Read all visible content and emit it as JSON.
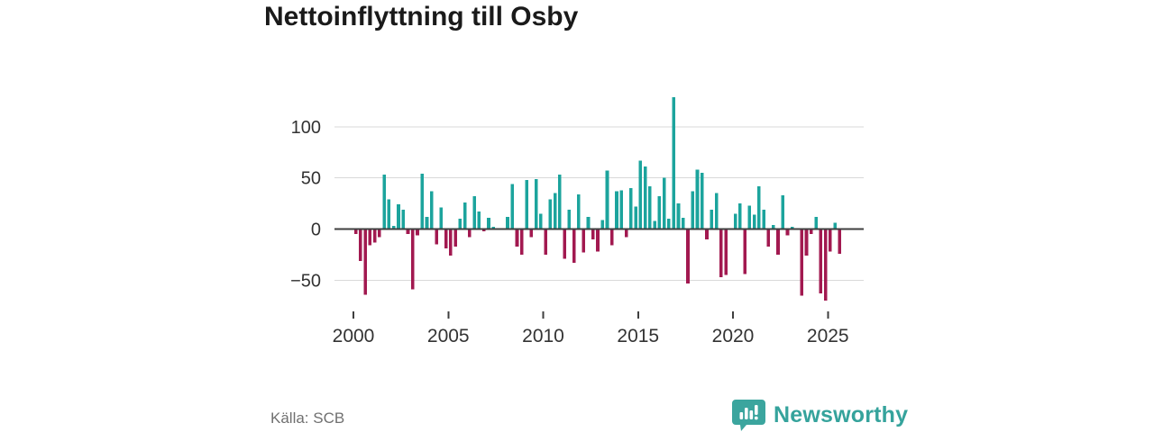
{
  "title": "Nettoinflyttning till Osby",
  "footer": {
    "source": "Källa: SCB",
    "brand": "Newsworthy"
  },
  "colors": {
    "positive_bar": "#1ca49d",
    "negative_bar": "#a21950",
    "brand_teal": "#35a39c",
    "grid_line": "#d9d9d9",
    "zero_line": "#3f3f3f",
    "tick_text": "#333333",
    "muted_text": "#707070"
  },
  "chart_data": {
    "type": "bar",
    "title": "Nettoinflyttning till Osby",
    "x_unit": "quarter",
    "x_range": "2000Q1–2025Q3",
    "grid": true,
    "legend": false,
    "ylim": [
      -80,
      140
    ],
    "yticks": [
      -50,
      0,
      50,
      100
    ],
    "ytick_labels": [
      "−50",
      "0",
      "50",
      "100"
    ],
    "xticks": [
      2000,
      2005,
      2010,
      2015,
      2020,
      2025
    ],
    "xtick_labels": [
      "2000",
      "2005",
      "2010",
      "2015",
      "2020",
      "2025"
    ],
    "years": [
      {
        "year": 2000,
        "values": [
          -5,
          -31,
          -64,
          -16
        ]
      },
      {
        "year": 2001,
        "values": [
          -13,
          -8,
          53,
          29
        ]
      },
      {
        "year": 2002,
        "values": [
          3,
          24,
          19,
          -5
        ]
      },
      {
        "year": 2003,
        "values": [
          -59,
          -6,
          54,
          12
        ]
      },
      {
        "year": 2004,
        "values": [
          37,
          -15,
          21,
          -19
        ]
      },
      {
        "year": 2005,
        "values": [
          -26,
          -17,
          10,
          26
        ]
      },
      {
        "year": 2006,
        "values": [
          -8,
          32,
          17,
          -2
        ]
      },
      {
        "year": 2007,
        "values": [
          11,
          2,
          0,
          0
        ]
      },
      {
        "year": 2008,
        "values": [
          12,
          44,
          -17,
          -25
        ]
      },
      {
        "year": 2009,
        "values": [
          48,
          -8,
          49,
          15
        ]
      },
      {
        "year": 2010,
        "values": [
          -25,
          29,
          35,
          53
        ]
      },
      {
        "year": 2011,
        "values": [
          -29,
          19,
          -33,
          34
        ]
      },
      {
        "year": 2012,
        "values": [
          -23,
          12,
          -10,
          -22
        ]
      },
      {
        "year": 2013,
        "values": [
          9,
          57,
          -16,
          37
        ]
      },
      {
        "year": 2014,
        "values": [
          38,
          -8,
          40,
          22
        ]
      },
      {
        "year": 2015,
        "values": [
          67,
          61,
          42,
          8
        ]
      },
      {
        "year": 2016,
        "values": [
          32,
          50,
          10,
          129
        ]
      },
      {
        "year": 2017,
        "values": [
          25,
          11,
          -53,
          37
        ]
      },
      {
        "year": 2018,
        "values": [
          58,
          55,
          -10,
          19
        ]
      },
      {
        "year": 2019,
        "values": [
          35,
          -47,
          -45,
          0
        ]
      },
      {
        "year": 2020,
        "values": [
          15,
          25,
          -44,
          23
        ]
      },
      {
        "year": 2021,
        "values": [
          14,
          42,
          19,
          -17
        ]
      },
      {
        "year": 2022,
        "values": [
          4,
          -25,
          33,
          -6
        ]
      },
      {
        "year": 2023,
        "values": [
          2,
          0,
          -65,
          -26
        ]
      },
      {
        "year": 2024,
        "values": [
          -5,
          12,
          -63,
          -70
        ]
      },
      {
        "year": 2025,
        "values": [
          -22,
          6,
          -24
        ]
      }
    ]
  }
}
